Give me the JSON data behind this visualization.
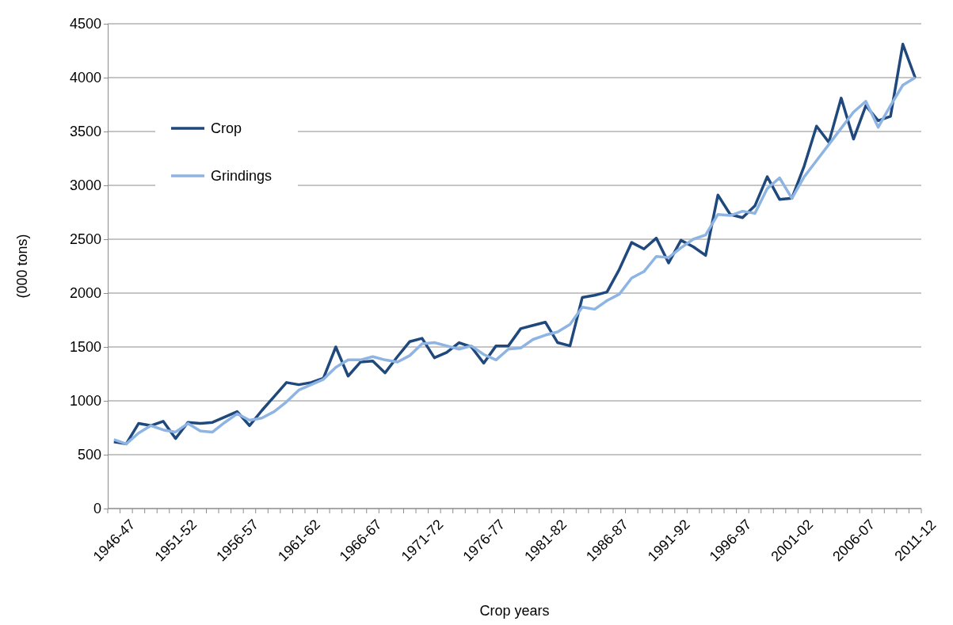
{
  "chart_data": {
    "type": "line",
    "xlabel": "Crop years",
    "ylabel": "(000 tons)",
    "categories": [
      "1946-47",
      null,
      null,
      null,
      null,
      "1951-52",
      null,
      null,
      null,
      null,
      "1956-57",
      null,
      null,
      null,
      null,
      "1961-62",
      null,
      null,
      null,
      null,
      "1966-67",
      null,
      null,
      null,
      null,
      "1971-72",
      null,
      null,
      null,
      null,
      "1976-77",
      null,
      null,
      null,
      null,
      "1981-82",
      null,
      null,
      null,
      null,
      "1986-87",
      null,
      null,
      null,
      null,
      "1991-92",
      null,
      null,
      null,
      null,
      "1996-97",
      null,
      null,
      null,
      null,
      "2001-02",
      null,
      null,
      null,
      null,
      "2006-07",
      null,
      null,
      null,
      null,
      "2011-12"
    ],
    "series": [
      {
        "name": "Crop",
        "color": "#1f497d",
        "values": [
          620,
          600,
          790,
          770,
          810,
          650,
          800,
          790,
          800,
          850,
          900,
          770,
          910,
          1040,
          1170,
          1150,
          1170,
          1210,
          1500,
          1230,
          1360,
          1370,
          1260,
          1410,
          1550,
          1580,
          1400,
          1450,
          1540,
          1500,
          1350,
          1510,
          1510,
          1670,
          1700,
          1730,
          1540,
          1510,
          1960,
          1980,
          2010,
          2220,
          2470,
          2410,
          2510,
          2280,
          2490,
          2430,
          2350,
          2910,
          2730,
          2700,
          2810,
          3080,
          2870,
          2880,
          3180,
          3550,
          3400,
          3810,
          3430,
          3740,
          3600,
          3640,
          4310,
          4000
        ]
      },
      {
        "name": "Grindings",
        "color": "#8db4e2",
        "values": [
          640,
          600,
          700,
          770,
          730,
          710,
          790,
          720,
          710,
          800,
          880,
          820,
          840,
          900,
          990,
          1100,
          1150,
          1200,
          1310,
          1380,
          1380,
          1410,
          1380,
          1360,
          1420,
          1530,
          1540,
          1510,
          1480,
          1510,
          1430,
          1380,
          1480,
          1490,
          1570,
          1610,
          1640,
          1710,
          1870,
          1850,
          1930,
          1990,
          2140,
          2200,
          2340,
          2330,
          2420,
          2500,
          2540,
          2730,
          2720,
          2760,
          2740,
          2970,
          3070,
          2880,
          3080,
          3230,
          3380,
          3530,
          3680,
          3780,
          3540,
          3740,
          3930,
          4000
        ]
      }
    ],
    "ylim": [
      0,
      4500
    ],
    "yticks": [
      0,
      500,
      1000,
      1500,
      2000,
      2500,
      3000,
      3500,
      4000,
      4500
    ],
    "grid": "y",
    "legend": "top left",
    "line_style": "solid",
    "marker": "none"
  }
}
